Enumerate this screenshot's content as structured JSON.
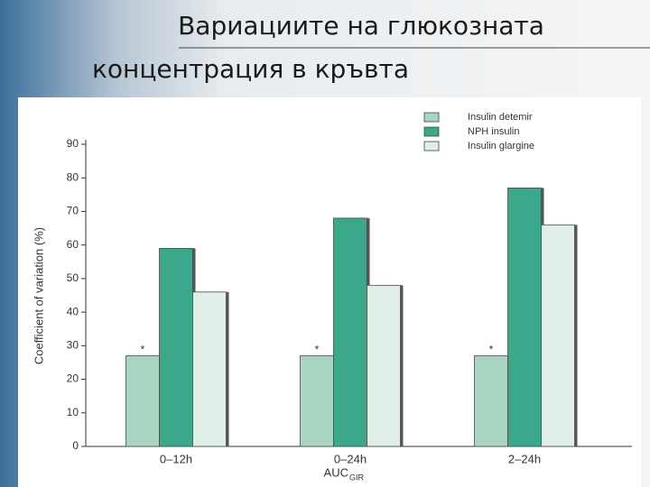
{
  "header": {
    "title_line1": "Вариациите на глюкозната",
    "title_line2": "концентрация в кръвта"
  },
  "chart_data": {
    "type": "bar",
    "y_label": "Coefficient of variation (%)",
    "x_label": "AUC",
    "x_label_sub": "GIR",
    "categories": [
      "0–12h",
      "0–24h",
      "2–24h"
    ],
    "series": [
      {
        "name": "Insulin detemir",
        "color": "#a9d6c3",
        "values": [
          27,
          27,
          27
        ]
      },
      {
        "name": "NPH insulin",
        "color": "#3ba88c",
        "values": [
          59,
          68,
          77
        ]
      },
      {
        "name": "Insulin glargine",
        "color": "#dfeee7",
        "values": [
          46,
          48,
          66
        ]
      }
    ],
    "annotations": [
      "*",
      "*",
      "*"
    ],
    "ylim": [
      0,
      90
    ],
    "yticks": [
      0,
      10,
      20,
      30,
      40,
      50,
      60,
      70,
      80,
      90
    ],
    "legend": "top-right"
  }
}
